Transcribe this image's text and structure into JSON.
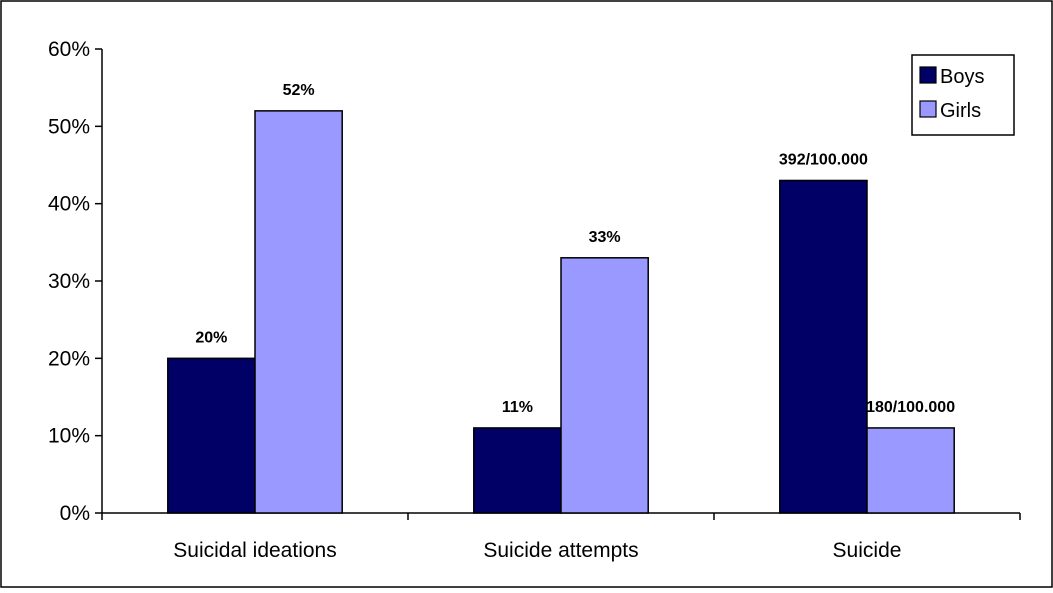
{
  "chart_data": {
    "type": "bar",
    "categories": [
      "Suicidal ideations",
      "Suicide attempts",
      "Suicide"
    ],
    "series": [
      {
        "name": "Boys",
        "values": [
          20,
          11,
          43
        ],
        "labels": [
          "20%",
          "11%",
          "392/100.000"
        ],
        "color": "#000066"
      },
      {
        "name": "Girls",
        "values": [
          52,
          33,
          11
        ],
        "labels": [
          "52%",
          "33%",
          "180/100.000"
        ],
        "color": "#9999ff"
      }
    ],
    "y_ticks": [
      "0%",
      "10%",
      "20%",
      "30%",
      "40%",
      "50%",
      "60%"
    ],
    "ylim": [
      0,
      60
    ],
    "grid": false,
    "legend_position": "top-right"
  }
}
